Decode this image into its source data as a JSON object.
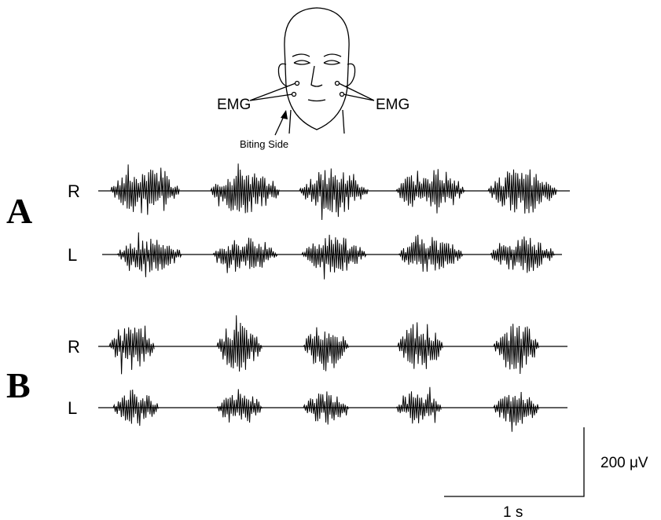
{
  "face": {
    "electrode_labels": [
      "EMG",
      "EMG"
    ],
    "annotation": "Biting Side"
  },
  "panels": [
    {
      "label": "A",
      "traces": [
        "R",
        "L"
      ]
    },
    {
      "label": "B",
      "traces": [
        "R",
        "L"
      ]
    }
  ],
  "scale_bar": {
    "amplitude": "200 μV",
    "time": "1 s"
  }
}
